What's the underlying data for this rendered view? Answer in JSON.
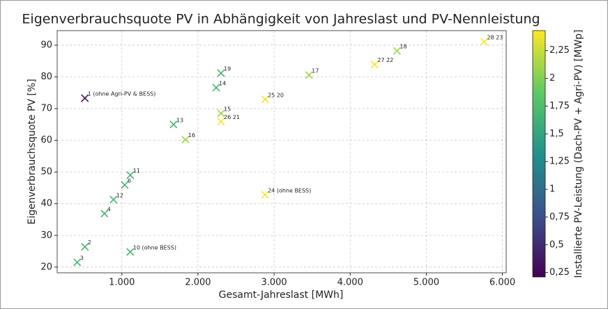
{
  "chart_data": {
    "type": "scatter",
    "title": "Eigenverbrauchsquote PV in Abhängigkeit von Jahreslast und PV-Nennleistung",
    "x_label": "Gesamt-Jahreslast [MWh]",
    "y_label": "Eigenverbrauchsquote PV [%]",
    "colorbar_label": "Installierte PV-Leistung (Dach-PV + Agri-PV) [MWp]",
    "x": [
      514,
      514,
      413,
      771,
      890,
      1037,
      1110,
      1110,
      1679,
      1835,
      2239,
      2303,
      2303,
      2303,
      2881,
      3459,
      4321,
      4615,
      5761,
      2881
    ],
    "values": [
      73.3,
      26.4,
      21.5,
      36.9,
      41.3,
      45.9,
      49.0,
      24.8,
      65.0,
      60.2,
      76.6,
      81.2,
      68.5,
      65.9,
      72.9,
      80.6,
      83.9,
      88.2,
      91.1,
      42.8
    ],
    "c": [
      0.3,
      1.65,
      1.65,
      1.65,
      1.65,
      1.65,
      1.65,
      1.65,
      1.65,
      2.1,
      1.65,
      1.65,
      2.1,
      2.4,
      2.4,
      2.1,
      2.4,
      2.1,
      2.4,
      2.4
    ],
    "point_labels": [
      "1 (ohne Agri-PV & BESS)",
      "2",
      "3",
      "4",
      "12",
      "6",
      "11",
      "10 (ohne BESS)",
      "13",
      "16",
      "14",
      "19",
      "15",
      "26  21",
      "25  20",
      "17",
      "27  22",
      "18",
      "28  23",
      "24 (ohne BESS)"
    ],
    "xlim": [
      150,
      6050
    ],
    "ylim": [
      18.2,
      94.6
    ],
    "clim": [
      0.21,
      2.43
    ],
    "xticks": [
      {
        "value": 1000,
        "label": "1.000"
      },
      {
        "value": 2000,
        "label": "2.000"
      },
      {
        "value": 3000,
        "label": "3.000"
      },
      {
        "value": 4000,
        "label": "4.000"
      },
      {
        "value": 5000,
        "label": "5.000"
      },
      {
        "value": 6000,
        "label": "6.000"
      }
    ],
    "yticks": [
      20,
      30,
      40,
      50,
      60,
      70,
      80,
      90
    ],
    "cticks": [
      {
        "value": 0.25,
        "label": "0,25"
      },
      {
        "value": 0.5,
        "label": "0,5"
      },
      {
        "value": 0.75,
        "label": "0,75"
      },
      {
        "value": 1,
        "label": "1"
      },
      {
        "value": 1.25,
        "label": "1,25"
      },
      {
        "value": 1.5,
        "label": "1,5"
      },
      {
        "value": 1.75,
        "label": "1,75"
      },
      {
        "value": 2,
        "label": "2"
      },
      {
        "value": 2.25,
        "label": "2,25"
      }
    ],
    "colormap": "viridis",
    "grid": true
  }
}
